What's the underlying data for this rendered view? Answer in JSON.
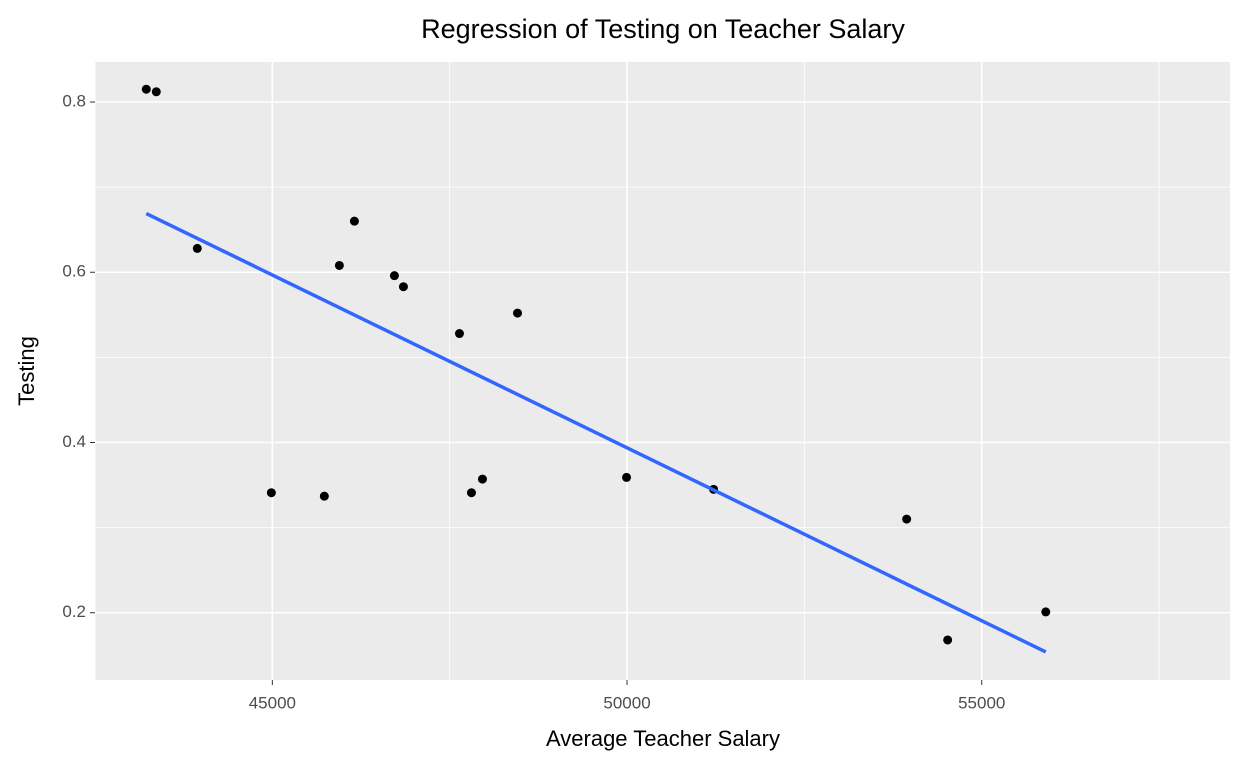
{
  "chart_data": {
    "type": "scatter",
    "title": "Regression of Testing on Teacher Salary",
    "x_label": "Average Teacher Salary",
    "y_label": "Testing",
    "series": [
      {
        "color": "#000000",
        "x": [
          43223,
          43364,
          43942,
          44986,
          45733,
          45945,
          46157,
          46721,
          46848,
          47638,
          47807,
          47962,
          48456,
          49993,
          51220,
          53942,
          54520,
          55903
        ],
        "values": [
          0.815,
          0.812,
          0.628,
          0.341,
          0.337,
          0.608,
          0.66,
          0.596,
          0.583,
          0.528,
          0.341,
          0.357,
          0.552,
          0.359,
          0.345,
          0.31,
          0.168,
          0.201
        ]
      }
    ],
    "fit": {
      "color": "#3366ff",
      "x": [
        43223,
        55903
      ],
      "values": [
        0.669,
        0.154
      ]
    },
    "xlim": [
      42500,
      58500
    ],
    "ylim": [
      0.121,
      0.847
    ],
    "xticks": [
      45000,
      50000,
      55000
    ],
    "yticks": [
      0.2,
      0.4,
      0.6,
      0.8
    ],
    "xminorticks": [
      42500,
      47500,
      52500,
      57500
    ],
    "yminorticks": [
      0.3,
      0.5,
      0.7
    ],
    "grid": true,
    "panel_color": "#ebebeb"
  }
}
